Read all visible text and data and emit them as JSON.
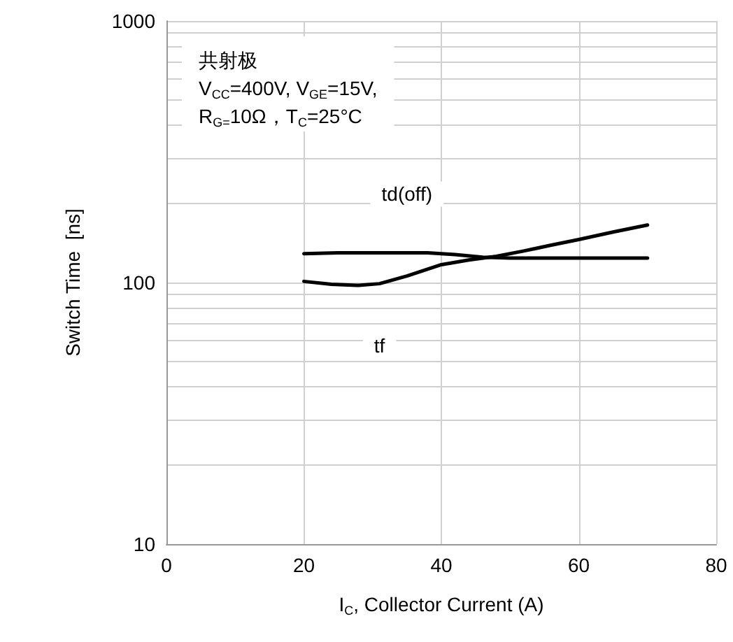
{
  "chart_data": {
    "type": "line",
    "xlabel": "I$_{C}$, Collector Current (A)",
    "ylabel": "Switch Time  [ns]",
    "xlim": [
      0,
      80
    ],
    "xticks": [
      0,
      20,
      40,
      60,
      80
    ],
    "ylim": [
      10,
      1000
    ],
    "log": "y",
    "yticks": [
      10,
      {
        "value": 20,
        "label": null
      },
      {
        "value": 30,
        "label": null
      },
      {
        "value": 40,
        "label": null
      },
      {
        "value": 50,
        "label": null
      },
      {
        "value": 60,
        "label": null
      },
      {
        "value": 70,
        "label": null
      },
      {
        "value": 80,
        "label": null
      },
      {
        "value": 90,
        "label": null
      },
      100,
      {
        "value": 200,
        "label": null
      },
      {
        "value": 300,
        "label": null
      },
      {
        "value": 400,
        "label": null
      },
      {
        "value": 500,
        "label": null
      },
      {
        "value": 600,
        "label": null
      },
      {
        "value": 700,
        "label": null
      },
      {
        "value": 800,
        "label": null
      },
      {
        "value": 900,
        "label": null
      },
      1000
    ],
    "grid": true,
    "marker": "none",
    "line_style": "solid",
    "series": [
      {
        "name": "td(off)",
        "color": "#000000",
        "x": [
          20,
          25,
          30,
          35,
          38,
          42,
          46,
          50,
          55,
          60,
          65,
          70
        ],
        "values": [
          129,
          130,
          130,
          130,
          130,
          128,
          125,
          124,
          124,
          124,
          124,
          124
        ]
      },
      {
        "name": "tf",
        "color": "#000000",
        "x": [
          20,
          24,
          28,
          31,
          35,
          40,
          44,
          48,
          52,
          56,
          60,
          65,
          70
        ],
        "values": [
          101,
          98.5,
          97.5,
          99,
          106,
          117,
          122,
          126,
          132,
          139,
          146,
          156,
          166
        ]
      }
    ],
    "annotations": [
      "共射极\nV$_{CC}$=400V, V$_{GE}$=15V,\nR$_{G=}$10Ω，T$_{C}$=25°C"
    ]
  }
}
